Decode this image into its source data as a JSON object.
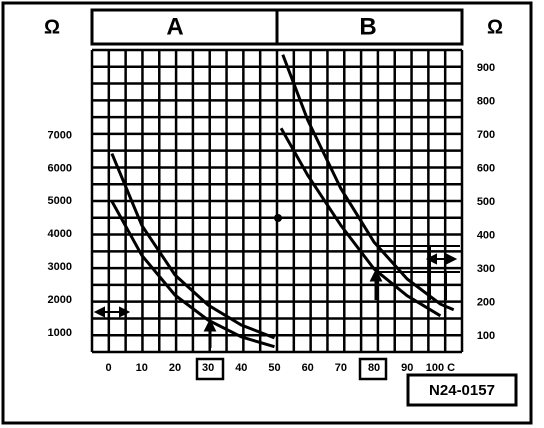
{
  "chart_data": {
    "type": "line",
    "headers": [
      "A",
      "B"
    ],
    "y_unit": "Ω",
    "y2_unit": "Ω",
    "code": "N24-0157",
    "xlim": [
      -5,
      106.5
    ],
    "xticks": [
      0,
      10,
      20,
      30,
      40,
      50,
      60,
      70,
      80,
      90,
      {
        "value": 100,
        "label": "100 C"
      }
    ],
    "ylim": [
      420,
      9600
    ],
    "yticks": [
      1000,
      2000,
      3000,
      4000,
      5000,
      6000,
      7000
    ],
    "y2lim": [
      52,
      954
    ],
    "y2ticks": [
      100,
      200,
      300,
      400,
      500,
      600,
      700,
      800,
      900
    ],
    "grid": true,
    "series": [
      {
        "color": "#000000",
        "x": [
          1,
          10,
          20,
          30,
          40,
          50
        ],
        "values": [
          6450,
          4270,
          2760,
          1850,
          1240,
          850
        ]
      },
      {
        "color": "#000000",
        "x": [
          1,
          10,
          20,
          30,
          40,
          50
        ],
        "values": [
          5000,
          3360,
          2150,
          1390,
          880,
          580
        ]
      },
      {
        "color": "#000000",
        "axis": "y2",
        "x": [
          52.5,
          60,
          70,
          80,
          90,
          100,
          104
        ],
        "values": [
          940,
          745,
          540,
          380,
          270,
          195,
          178
        ]
      },
      {
        "color": "#000000",
        "axis": "y2",
        "x": [
          52,
          60,
          70,
          80,
          90,
          100
        ],
        "values": [
          720,
          580,
          430,
          300,
          220,
          160
        ]
      }
    ]
  }
}
